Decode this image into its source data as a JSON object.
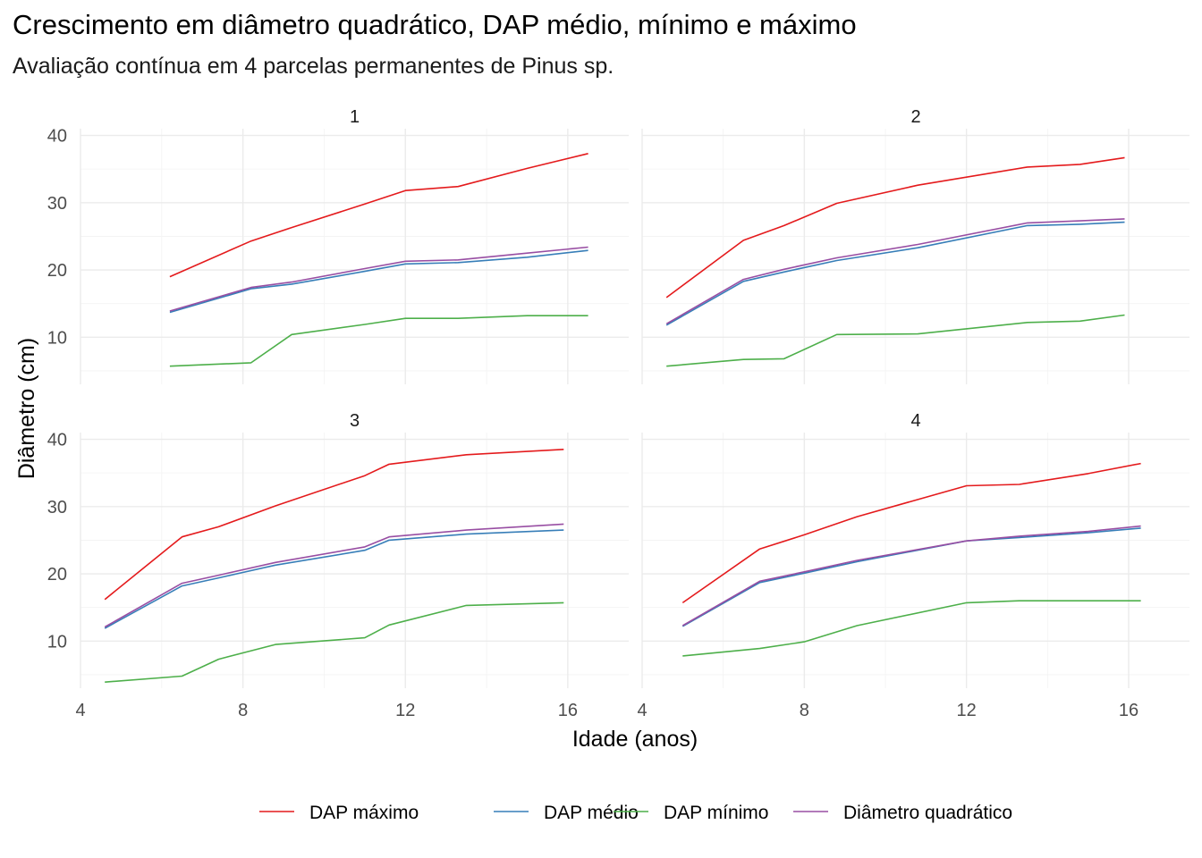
{
  "chart_data": {
    "type": "line",
    "title": "Crescimento em diâmetro quadrático, DAP médio, mínimo e máximo",
    "subtitle": "Avaliação contínua em 4 parcelas permanentes de Pinus sp.",
    "xlabel": "Idade (anos)",
    "ylabel": "Diâmetro (cm)",
    "xlim": [
      4,
      17.5
    ],
    "ylim": [
      3,
      41
    ],
    "x_ticks": [
      4,
      8,
      12,
      16
    ],
    "y_ticks": [
      10,
      20,
      30,
      40
    ],
    "grid": true,
    "legend_position": "bottom",
    "series_styles": [
      {
        "name": "DAP máximo",
        "color": "#e41a1c"
      },
      {
        "name": "DAP médio",
        "color": "#377eb8"
      },
      {
        "name": "DAP mínimo",
        "color": "#4daf4a"
      },
      {
        "name": "Diâmetro quadrático",
        "color": "#984ea3"
      }
    ],
    "facets": [
      {
        "label": "1",
        "series": [
          {
            "name": "DAP máximo",
            "x": [
              6.2,
              8.2,
              9.2,
              11.0,
              12.0,
              13.3,
              15.0,
              16.5
            ],
            "y": [
              19.0,
              24.3,
              26.3,
              29.8,
              31.8,
              32.4,
              35.1,
              37.3
            ]
          },
          {
            "name": "DAP médio",
            "x": [
              6.2,
              8.2,
              9.2,
              11.0,
              12.0,
              13.3,
              15.0,
              16.5
            ],
            "y": [
              13.7,
              17.2,
              17.9,
              19.8,
              20.9,
              21.1,
              21.9,
              22.9
            ]
          },
          {
            "name": "DAP mínimo",
            "x": [
              6.2,
              8.2,
              9.2,
              11.0,
              12.0,
              13.3,
              15.0,
              16.5
            ],
            "y": [
              5.7,
              6.2,
              10.4,
              11.9,
              12.8,
              12.8,
              13.2,
              13.2
            ]
          },
          {
            "name": "Diâmetro quadrático",
            "x": [
              6.2,
              8.2,
              9.2,
              11.0,
              12.0,
              13.3,
              15.0,
              16.5
            ],
            "y": [
              13.9,
              17.4,
              18.2,
              20.2,
              21.3,
              21.5,
              22.5,
              23.4
            ]
          }
        ]
      },
      {
        "label": "2",
        "series": [
          {
            "name": "DAP máximo",
            "x": [
              4.6,
              6.5,
              7.5,
              8.8,
              10.8,
              13.5,
              14.8,
              15.9
            ],
            "y": [
              15.9,
              24.4,
              26.6,
              29.9,
              32.6,
              35.3,
              35.7,
              36.7
            ]
          },
          {
            "name": "DAP médio",
            "x": [
              4.6,
              6.5,
              7.5,
              8.8,
              10.8,
              13.5,
              14.8,
              15.9
            ],
            "y": [
              11.8,
              18.3,
              19.7,
              21.4,
              23.3,
              26.6,
              26.8,
              27.1
            ]
          },
          {
            "name": "DAP mínimo",
            "x": [
              4.6,
              6.5,
              7.5,
              8.8,
              10.8,
              13.5,
              14.8,
              15.9
            ],
            "y": [
              5.7,
              6.7,
              6.8,
              10.4,
              10.5,
              12.2,
              12.4,
              13.3
            ]
          },
          {
            "name": "Diâmetro quadrático",
            "x": [
              4.6,
              6.5,
              7.5,
              8.8,
              10.8,
              13.5,
              14.8,
              15.9
            ],
            "y": [
              12.0,
              18.6,
              20.1,
              21.8,
              23.8,
              27.0,
              27.3,
              27.6
            ]
          }
        ]
      },
      {
        "label": "3",
        "series": [
          {
            "name": "DAP máximo",
            "x": [
              4.6,
              6.5,
              7.4,
              8.8,
              11.0,
              11.6,
              13.5,
              15.9
            ],
            "y": [
              16.2,
              25.5,
              27.0,
              30.1,
              34.6,
              36.3,
              37.7,
              38.5
            ]
          },
          {
            "name": "DAP médio",
            "x": [
              4.6,
              6.5,
              7.4,
              8.8,
              11.0,
              11.6,
              13.5,
              15.9
            ],
            "y": [
              11.9,
              18.2,
              19.4,
              21.3,
              23.5,
              25.0,
              25.9,
              26.5
            ]
          },
          {
            "name": "DAP mínimo",
            "x": [
              4.6,
              6.5,
              7.4,
              8.8,
              11.0,
              11.6,
              13.5,
              15.9
            ],
            "y": [
              3.9,
              4.8,
              7.3,
              9.5,
              10.5,
              12.4,
              15.3,
              15.7
            ]
          },
          {
            "name": "Diâmetro quadrático",
            "x": [
              4.6,
              6.5,
              7.4,
              8.8,
              11.0,
              11.6,
              13.5,
              15.9
            ],
            "y": [
              12.1,
              18.6,
              19.8,
              21.7,
              24.0,
              25.5,
              26.5,
              27.4
            ]
          }
        ]
      },
      {
        "label": "4",
        "series": [
          {
            "name": "DAP máximo",
            "x": [
              5.0,
              6.9,
              8.0,
              9.3,
              12.0,
              13.3,
              15.0,
              16.3
            ],
            "y": [
              15.7,
              23.7,
              25.8,
              28.5,
              33.1,
              33.3,
              34.9,
              36.4
            ]
          },
          {
            "name": "DAP médio",
            "x": [
              5.0,
              6.9,
              8.0,
              9.3,
              12.0,
              13.3,
              15.0,
              16.3
            ],
            "y": [
              12.2,
              18.7,
              20.1,
              21.8,
              24.9,
              25.4,
              26.1,
              26.8
            ]
          },
          {
            "name": "DAP mínimo",
            "x": [
              5.0,
              6.9,
              8.0,
              9.3,
              12.0,
              13.3,
              15.0,
              16.3
            ],
            "y": [
              7.8,
              8.9,
              9.9,
              12.3,
              15.7,
              16.0,
              16.0,
              16.0
            ]
          },
          {
            "name": "Diâmetro quadrático",
            "x": [
              5.0,
              6.9,
              8.0,
              9.3,
              12.0,
              13.3,
              15.0,
              16.3
            ],
            "y": [
              12.3,
              18.9,
              20.3,
              22.0,
              24.9,
              25.6,
              26.3,
              27.1
            ]
          }
        ]
      }
    ]
  }
}
